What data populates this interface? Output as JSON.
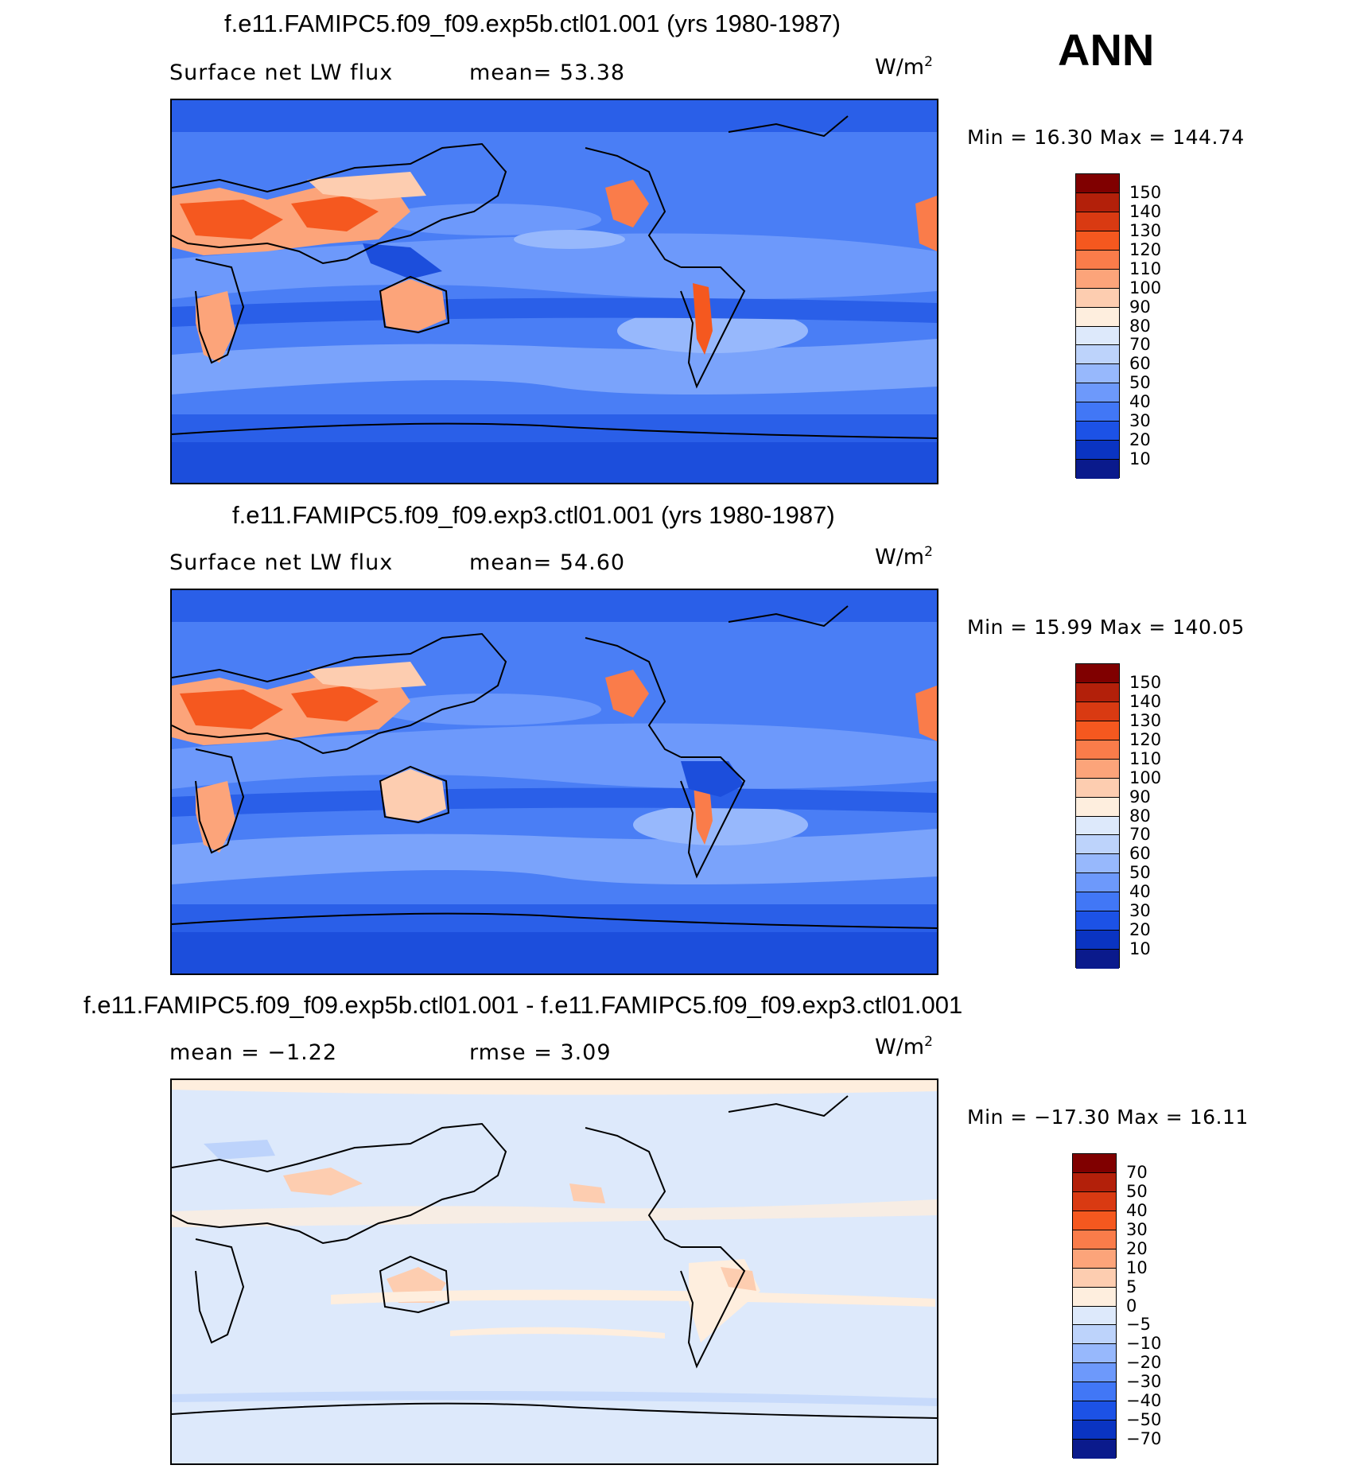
{
  "season": "ANN",
  "panels": [
    {
      "title": "f.e11.FAMIPC5.f09_f09.exp5b.ctl01.001 (yrs 1980-1987)",
      "subtitle_left": "Surface net LW flux",
      "subtitle_mid": "mean=  53.38",
      "units": "W/m",
      "units_sup": "2",
      "minmax": "Min =   16.30 Max =  144.74",
      "colorbar_labels": [
        "150",
        "140",
        "130",
        "120",
        "110",
        "100",
        "90",
        "80",
        "70",
        "60",
        "50",
        "40",
        "30",
        "20",
        "10"
      ],
      "colorbar_colors": [
        "#800000",
        "#b3200a",
        "#d93a12",
        "#f5581f",
        "#fa7c4a",
        "#fca47a",
        "#fdcdb0",
        "#feeede",
        "#dde9fb",
        "#bdd3fb",
        "#97b8fc",
        "#6d99fb",
        "#4177f6",
        "#1c52e6",
        "#0a34c2",
        "#0a1a8c"
      ]
    },
    {
      "title": "f.e11.FAMIPC5.f09_f09.exp3.ctl01.001 (yrs 1980-1987)",
      "subtitle_left": "Surface net LW flux",
      "subtitle_mid": "mean=  54.60",
      "units": "W/m",
      "units_sup": "2",
      "minmax": "Min =   15.99 Max =  140.05",
      "colorbar_labels": [
        "150",
        "140",
        "130",
        "120",
        "110",
        "100",
        "90",
        "80",
        "70",
        "60",
        "50",
        "40",
        "30",
        "20",
        "10"
      ],
      "colorbar_colors": [
        "#800000",
        "#b3200a",
        "#d93a12",
        "#f5581f",
        "#fa7c4a",
        "#fca47a",
        "#fdcdb0",
        "#feeede",
        "#dde9fb",
        "#bdd3fb",
        "#97b8fc",
        "#6d99fb",
        "#4177f6",
        "#1c52e6",
        "#0a34c2",
        "#0a1a8c"
      ]
    },
    {
      "title": "f.e11.FAMIPC5.f09_f09.exp5b.ctl01.001 - f.e11.FAMIPC5.f09_f09.exp3.ctl01.001",
      "subtitle_left": "mean =   −1.22",
      "subtitle_mid": "rmse =    3.09",
      "units": "W/m",
      "units_sup": "2",
      "minmax": "Min = −17.30 Max =   16.11",
      "colorbar_labels": [
        "70",
        "50",
        "40",
        "30",
        "20",
        "10",
        "5",
        "0",
        "−5",
        "−10",
        "−20",
        "−30",
        "−40",
        "−50",
        "−70"
      ],
      "colorbar_colors": [
        "#800000",
        "#b3200a",
        "#d93a12",
        "#f5581f",
        "#fa7c4a",
        "#fca47a",
        "#fdcdb0",
        "#feeede",
        "#dde9fb",
        "#bdd3fb",
        "#97b8fc",
        "#6d99fb",
        "#4177f6",
        "#1c52e6",
        "#0a34c2",
        "#0a1a8c"
      ]
    }
  ]
}
